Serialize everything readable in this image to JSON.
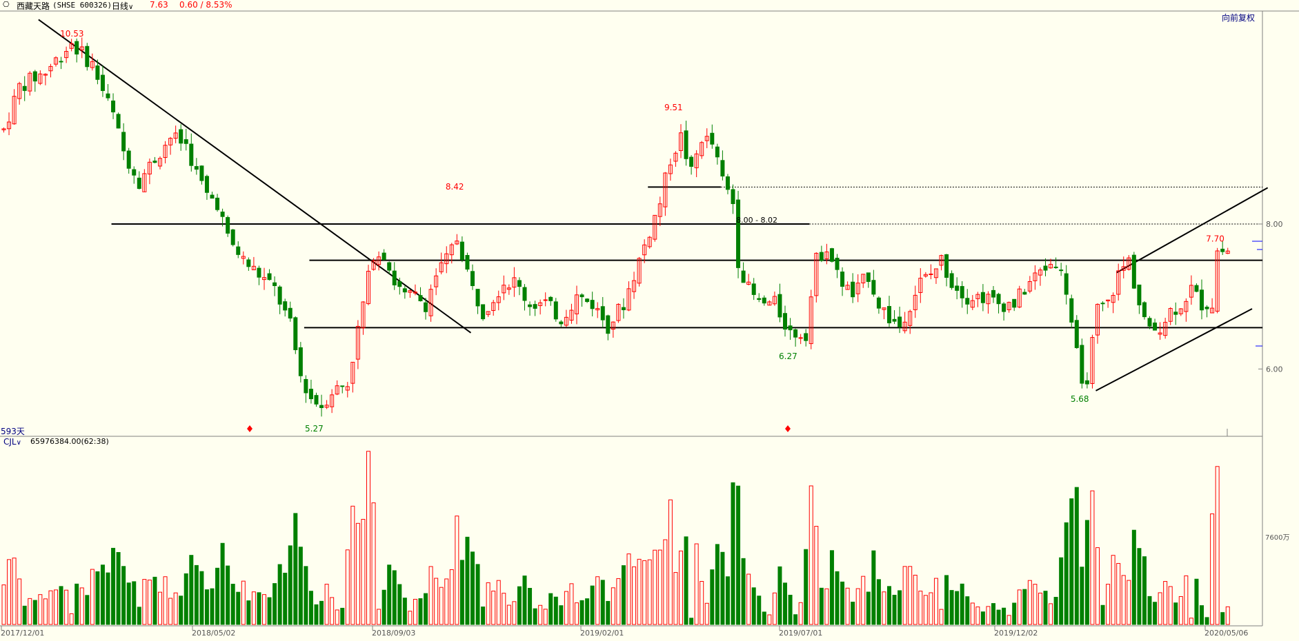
{
  "header": {
    "stock_name": "西藏天路",
    "stock_code": "(SHSE 600326)",
    "period": "日线",
    "price": "7.63",
    "change": "0.60 / 8.53%",
    "adjust": "向前复权"
  },
  "volume_panel": {
    "indicator": "CJL",
    "value": "65976384.00(62:38)",
    "axis_label": "7600万"
  },
  "day_count_label": "593天",
  "colors": {
    "background": "#fffff0",
    "up": "#ff0000",
    "down": "#008000",
    "header_blue": "#000080",
    "high_label": "#ff0000",
    "low_label": "#008000",
    "line": "#000000"
  },
  "icons": [
    "chain-link-icon",
    "chevron-down-icon",
    "diamond-marker-icon"
  ],
  "chart_data": {
    "type": "candlestick",
    "x_dates": [
      "2017/12/01",
      "2018/05/02",
      "2018/09/03",
      "2019/02/01",
      "2019/07/01",
      "2019/12/02",
      "2020/05/06"
    ],
    "y_ticks": [
      "8.00",
      "6.00"
    ],
    "ylim": [
      5.1,
      10.9
    ],
    "price_path": [
      [
        0,
        9.3
      ],
      [
        3,
        9.9
      ],
      [
        8,
        10.1
      ],
      [
        13,
        10.5
      ],
      [
        17,
        10.2
      ],
      [
        21,
        9.5
      ],
      [
        23,
        9.0
      ],
      [
        26,
        8.6
      ],
      [
        29,
        8.9
      ],
      [
        32,
        9.2
      ],
      [
        35,
        9.1
      ],
      [
        37,
        8.7
      ],
      [
        39,
        8.4
      ],
      [
        41,
        8.3
      ],
      [
        43,
        7.8
      ],
      [
        46,
        7.5
      ],
      [
        49,
        7.3
      ],
      [
        52,
        7.1
      ],
      [
        55,
        6.6
      ],
      [
        57,
        5.9
      ],
      [
        59,
        5.6
      ],
      [
        61,
        5.5
      ],
      [
        63,
        5.7
      ],
      [
        66,
        5.8
      ],
      [
        69,
        6.9
      ],
      [
        71,
        7.6
      ],
      [
        73,
        7.6
      ],
      [
        75,
        7.2
      ],
      [
        77,
        7.0
      ],
      [
        79,
        7.0
      ],
      [
        81,
        6.9
      ],
      [
        83,
        7.3
      ],
      [
        85,
        7.5
      ],
      [
        87,
        7.8
      ],
      [
        88,
        7.6
      ],
      [
        90,
        7.1
      ],
      [
        92,
        6.8
      ],
      [
        94,
        7.0
      ],
      [
        96,
        7.2
      ],
      [
        98,
        7.2
      ],
      [
        101,
        6.9
      ],
      [
        104,
        6.9
      ],
      [
        107,
        6.7
      ],
      [
        110,
        7.0
      ],
      [
        113,
        6.9
      ],
      [
        116,
        6.6
      ],
      [
        119,
        6.9
      ],
      [
        121,
        7.3
      ],
      [
        124,
        7.9
      ],
      [
        126,
        8.3
      ],
      [
        128,
        8.9
      ],
      [
        130,
        9.2
      ],
      [
        132,
        8.7
      ],
      [
        134,
        9.2
      ],
      [
        136,
        9.1
      ],
      [
        138,
        8.6
      ],
      [
        140,
        8.3
      ],
      [
        141,
        7.5
      ],
      [
        143,
        7.1
      ],
      [
        145,
        6.9
      ],
      [
        148,
        6.9
      ],
      [
        151,
        6.5
      ],
      [
        154,
        6.5
      ],
      [
        156,
        7.5
      ],
      [
        158,
        7.7
      ],
      [
        160,
        7.3
      ],
      [
        163,
        7.0
      ],
      [
        166,
        7.3
      ],
      [
        168,
        6.9
      ],
      [
        170,
        6.7
      ],
      [
        172,
        6.6
      ],
      [
        174,
        6.9
      ],
      [
        176,
        7.2
      ],
      [
        178,
        7.3
      ],
      [
        180,
        7.5
      ],
      [
        182,
        7.2
      ],
      [
        185,
        7.0
      ],
      [
        188,
        7.0
      ],
      [
        191,
        6.9
      ],
      [
        194,
        6.9
      ],
      [
        197,
        7.2
      ],
      [
        200,
        7.4
      ],
      [
        202,
        7.5
      ],
      [
        204,
        7.1
      ],
      [
        206,
        6.2
      ],
      [
        207,
        5.7
      ],
      [
        208,
        5.9
      ],
      [
        210,
        6.8
      ],
      [
        212,
        6.9
      ],
      [
        214,
        7.3
      ],
      [
        216,
        7.5
      ],
      [
        218,
        6.9
      ],
      [
        220,
        6.5
      ],
      [
        222,
        6.6
      ],
      [
        224,
        6.8
      ],
      [
        226,
        6.9
      ],
      [
        228,
        7.1
      ],
      [
        230,
        6.9
      ],
      [
        232,
        6.9
      ],
      [
        233,
        7.63
      ]
    ],
    "high_low_labels": [
      {
        "text": "10.53",
        "i": 13,
        "price": 10.53,
        "kind": "high"
      },
      {
        "text": "5.27",
        "i": 60,
        "price": 5.27,
        "kind": "low"
      },
      {
        "text": "8.42",
        "i": 87,
        "price": 8.42,
        "kind": "high"
      },
      {
        "text": "9.51",
        "i": 129,
        "price": 9.51,
        "kind": "high"
      },
      {
        "text": "6.27",
        "i": 151,
        "price": 6.27,
        "kind": "low"
      },
      {
        "text": "5.68",
        "i": 207,
        "price": 5.68,
        "kind": "low"
      },
      {
        "text": "7.70",
        "i": 233,
        "price": 7.7,
        "kind": "high"
      }
    ],
    "annotation": {
      "text": "8.00 - 8.02",
      "i": 142,
      "price": 8.0
    },
    "trend_lines": [
      {
        "from": [
          7,
          10.82
        ],
        "to": [
          90,
          6.5
        ],
        "style": "solid"
      },
      {
        "from": [
          21,
          8.0
        ],
        "to": [
          155,
          8.0
        ],
        "style": "solid"
      },
      {
        "from": [
          155,
          8.0
        ],
        "to": [
          242,
          8.0
        ],
        "style": "dotted"
      },
      {
        "from": [
          59,
          7.5
        ],
        "to": [
          242,
          7.5
        ],
        "style": "solid"
      },
      {
        "from": [
          58,
          6.57
        ],
        "to": [
          242,
          6.57
        ],
        "style": "solid"
      },
      {
        "from": [
          124,
          8.51
        ],
        "to": [
          138,
          8.51
        ],
        "style": "solid"
      },
      {
        "from": [
          138,
          8.51
        ],
        "to": [
          242,
          8.51
        ],
        "style": "dotted"
      },
      {
        "from": [
          214,
          7.33
        ],
        "to": [
          243,
          8.5
        ],
        "style": "solid"
      },
      {
        "from": [
          210,
          5.7
        ],
        "to": [
          240,
          6.83
        ],
        "style": "solid"
      }
    ],
    "volume_ylim": [
      0,
      1.5
    ]
  }
}
